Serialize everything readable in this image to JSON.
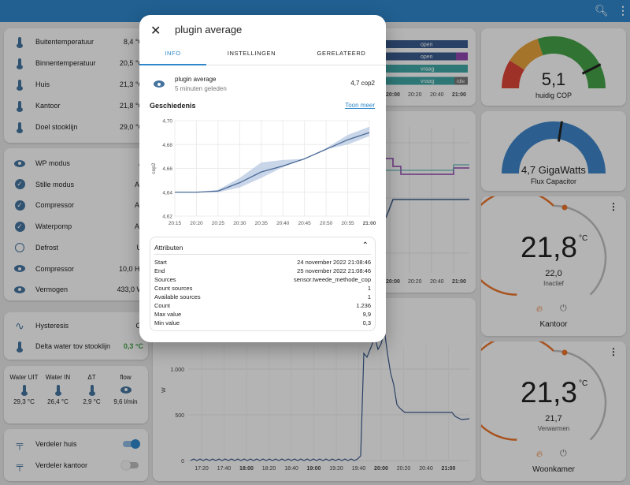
{
  "topbar": {
    "search_icon": "search-icon",
    "menu_icon": "more-vert-icon"
  },
  "left_card1": [
    {
      "label": "Buitentemperatuur",
      "value": "8,4 °C"
    },
    {
      "label": "Binnentemperatuur",
      "value": "20,5 °C"
    },
    {
      "label": "Huis",
      "value": "21,3 °C"
    },
    {
      "label": "Kantoor",
      "value": "21,8 °C"
    },
    {
      "label": "Doel stooklijn",
      "value": "29,0 °C"
    }
  ],
  "left_card2": [
    {
      "label": "WP modus",
      "value": "A",
      "icon": "eye-icon"
    },
    {
      "label": "Stille modus",
      "value": "Aa",
      "icon": "check-circle-icon"
    },
    {
      "label": "Compressor",
      "value": "Aa",
      "icon": "check-circle-icon"
    },
    {
      "label": "Waterpomp",
      "value": "Aa",
      "icon": "check-circle-icon"
    },
    {
      "label": "Defrost",
      "value": "Ui",
      "icon": "circle-outline-icon"
    },
    {
      "label": "Compressor",
      "value": "10,0 Hz",
      "icon": "eye-icon"
    },
    {
      "label": "Vermogen",
      "value": "433,0 W",
      "icon": "eye-icon"
    }
  ],
  "left_card3": [
    {
      "label": "Hysteresis",
      "value": "OI"
    },
    {
      "label": "Delta water tov stooklijn",
      "value": "0,3 °C"
    }
  ],
  "left_card4": {
    "cols": [
      {
        "label": "Water UIT",
        "value": "29,3 °C"
      },
      {
        "label": "Water IN",
        "value": "26,4 °C"
      },
      {
        "label": "ΔT",
        "value": "2,9 °C"
      },
      {
        "label": "flow",
        "value": "9,6 l/min"
      }
    ]
  },
  "left_card5": [
    {
      "label": "Verdeler huis",
      "on": true
    },
    {
      "label": "Verdeler kantoor",
      "on": false
    }
  ],
  "timeline": {
    "labels": [
      "open",
      "open",
      "vraag",
      "vraag"
    ],
    "extra": "idle",
    "times": [
      "20:00",
      "20:20",
      "20:40",
      "21:00"
    ],
    "colors": [
      "#3a5a8c",
      "#3a5a8c",
      "#3fa7a5",
      "#3fa7a5"
    ]
  },
  "mid_chart1": {
    "times": [
      "20:00",
      "20:20",
      "20:40",
      "21:00"
    ]
  },
  "bottom_chart": {
    "yticks": [
      "1.000",
      "500",
      "0"
    ],
    "ylabel": "W",
    "times": [
      "17:20",
      "17:40",
      "18:00",
      "18:20",
      "18:40",
      "19:00",
      "19:20",
      "19:40",
      "20:00",
      "20:20",
      "20:40",
      "21:00"
    ],
    "bold_times": [
      "18:00",
      "19:00",
      "20:00",
      "21:00"
    ]
  },
  "gauge_cop": {
    "value": "5,1",
    "label": "huidig COP",
    "fraction": 0.85
  },
  "gauge_flux": {
    "value": "4,7 GigaWatts",
    "label": "Flux Capacitor",
    "fraction": 0.55
  },
  "thermostat_kantoor": {
    "current": "21,8",
    "unit": "°C",
    "target": "22,0",
    "state": "Inactief",
    "name": "Kantoor"
  },
  "thermostat_woonkamer": {
    "current": "21,3",
    "unit": "°C",
    "target": "21,7",
    "state": "Verwarmen",
    "name": "Woonkamer"
  },
  "dialog": {
    "title": "plugin average",
    "tabs": [
      "INFO",
      "INSTELLINGEN",
      "GERELATEERD"
    ],
    "entity_name": "plugin average",
    "entity_time": "5 minuten geleden",
    "entity_state": "4,7 cop2",
    "history_title": "Geschiedenis",
    "show_more": "Toon meer",
    "attributes_title": "Attributen",
    "attributes": [
      {
        "key": "Start",
        "value": "24 november 2022 21:08:46"
      },
      {
        "key": "End",
        "value": "25 november 2022 21:08:46"
      },
      {
        "key": "Sources",
        "value": "sensor.tweede_methode_cop"
      },
      {
        "key": "Count sources",
        "value": "1"
      },
      {
        "key": "Available sources",
        "value": "1"
      },
      {
        "key": "Count",
        "value": "1.236"
      },
      {
        "key": "Max value",
        "value": "9,9"
      },
      {
        "key": "Min value",
        "value": "0,3"
      }
    ]
  },
  "chart_data": {
    "type": "line",
    "title": "",
    "xlabel": "",
    "ylabel": "cop2",
    "x": [
      "20:15",
      "20:20",
      "20:25",
      "20:30",
      "20:35",
      "20:40",
      "20:45",
      "20:50",
      "20:55",
      "21:00"
    ],
    "ylim": [
      4.62,
      4.7
    ],
    "yticks": [
      "4,70",
      "4,68",
      "4,66",
      "4,64",
      "4,62"
    ],
    "series": [
      {
        "values": [
          4.64,
          4.64,
          4.641,
          4.648,
          4.657,
          4.662,
          4.668,
          4.676,
          4.684,
          4.69
        ]
      }
    ],
    "band_low": [
      4.64,
      4.64,
      4.64,
      4.644,
      4.652,
      4.661,
      4.668,
      4.676,
      4.68,
      4.687
    ],
    "band_high": [
      4.64,
      4.64,
      4.642,
      4.652,
      4.665,
      4.667,
      4.668,
      4.677,
      4.688,
      4.695
    ]
  }
}
